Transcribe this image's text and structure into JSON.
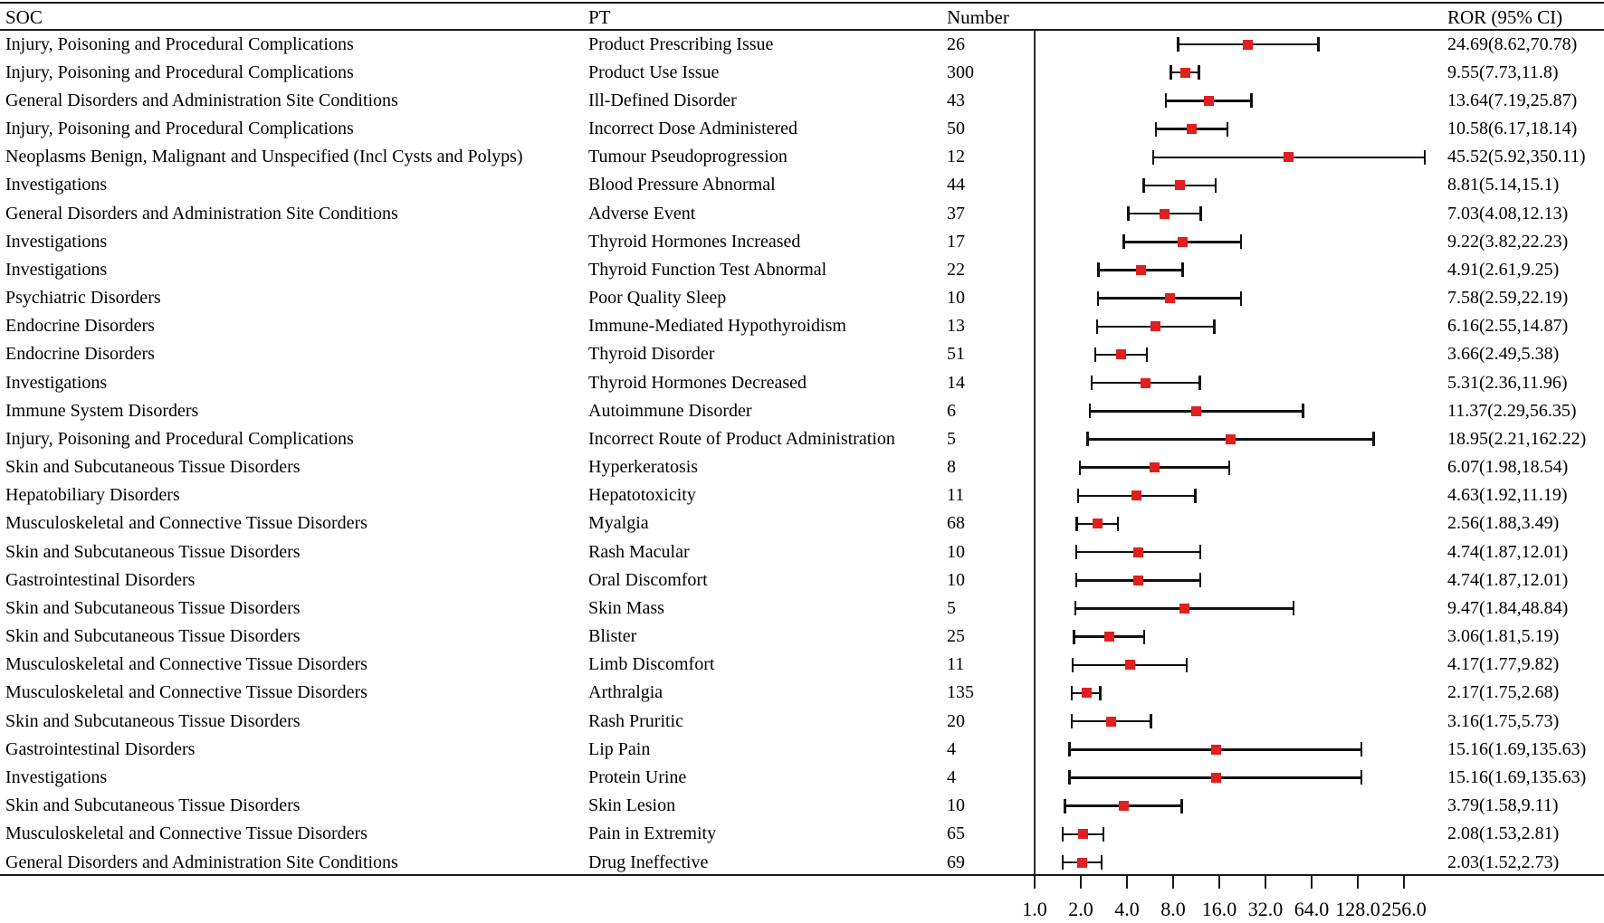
{
  "header": {
    "soc": "SOC",
    "pt": "PT",
    "number": "Number",
    "ror": "ROR (95% CI)"
  },
  "chart_data": {
    "type": "scatter",
    "subtype": "forest_plot",
    "title": "",
    "xlabel": "",
    "ylabel": "",
    "x_scale": "log2",
    "x_range": [
      1.0,
      256.0
    ],
    "x_axis_ticks": [
      "1.0",
      "2.0",
      "4.0",
      "8.0",
      "16.0",
      "32.0",
      "64.0",
      "128.0",
      "256.0"
    ],
    "reference_line_x": 1.0,
    "grid": false,
    "legend": "none",
    "marker_color": "#e01f1f",
    "line_color": "#111111",
    "rows": [
      {
        "soc": "Injury, Poisoning and Procedural Complications",
        "pt": "Product Prescribing Issue",
        "number": "26",
        "ror": 24.69,
        "ci_low": 8.62,
        "ci_high": 70.78,
        "ror_label": "24.69(8.62,70.78)"
      },
      {
        "soc": "Injury, Poisoning and Procedural Complications",
        "pt": "Product Use Issue",
        "number": "300",
        "ror": 9.55,
        "ci_low": 7.73,
        "ci_high": 11.8,
        "ror_label": "9.55(7.73,11.8)"
      },
      {
        "soc": "General Disorders and Administration Site Conditions",
        "pt": "Ill-Defined Disorder",
        "number": "43",
        "ror": 13.64,
        "ci_low": 7.19,
        "ci_high": 25.87,
        "ror_label": "13.64(7.19,25.87)"
      },
      {
        "soc": "Injury, Poisoning and Procedural Complications",
        "pt": "Incorrect Dose Administered",
        "number": "50",
        "ror": 10.58,
        "ci_low": 6.17,
        "ci_high": 18.14,
        "ror_label": "10.58(6.17,18.14)"
      },
      {
        "soc": "Neoplasms Benign, Malignant and Unspecified (Incl Cysts and Polyps)",
        "pt": "Tumour Pseudoprogression",
        "number": "12",
        "ror": 45.52,
        "ci_low": 5.92,
        "ci_high": 350.11,
        "ror_label": "45.52(5.92,350.11)"
      },
      {
        "soc": "Investigations",
        "pt": "Blood Pressure Abnormal",
        "number": "44",
        "ror": 8.81,
        "ci_low": 5.14,
        "ci_high": 15.1,
        "ror_label": "8.81(5.14,15.1)"
      },
      {
        "soc": "General Disorders and Administration Site Conditions",
        "pt": "Adverse Event",
        "number": "37",
        "ror": 7.03,
        "ci_low": 4.08,
        "ci_high": 12.13,
        "ror_label": "7.03(4.08,12.13)"
      },
      {
        "soc": "Investigations",
        "pt": "Thyroid Hormones Increased",
        "number": "17",
        "ror": 9.22,
        "ci_low": 3.82,
        "ci_high": 22.23,
        "ror_label": "9.22(3.82,22.23)"
      },
      {
        "soc": "Investigations",
        "pt": "Thyroid Function Test Abnormal",
        "number": "22",
        "ror": 4.91,
        "ci_low": 2.61,
        "ci_high": 9.25,
        "ror_label": "4.91(2.61,9.25)"
      },
      {
        "soc": "Psychiatric Disorders",
        "pt": "Poor Quality Sleep",
        "number": "10",
        "ror": 7.58,
        "ci_low": 2.59,
        "ci_high": 22.19,
        "ror_label": "7.58(2.59,22.19)"
      },
      {
        "soc": "Endocrine Disorders",
        "pt": "Immune-Mediated Hypothyroidism",
        "number": "13",
        "ror": 6.16,
        "ci_low": 2.55,
        "ci_high": 14.87,
        "ror_label": "6.16(2.55,14.87)"
      },
      {
        "soc": "Endocrine Disorders",
        "pt": "Thyroid Disorder",
        "number": "51",
        "ror": 3.66,
        "ci_low": 2.49,
        "ci_high": 5.38,
        "ror_label": "3.66(2.49,5.38)"
      },
      {
        "soc": "Investigations",
        "pt": "Thyroid Hormones Decreased",
        "number": "14",
        "ror": 5.31,
        "ci_low": 2.36,
        "ci_high": 11.96,
        "ror_label": "5.31(2.36,11.96)"
      },
      {
        "soc": "Immune System Disorders",
        "pt": "Autoimmune Disorder",
        "number": "6",
        "ror": 11.37,
        "ci_low": 2.29,
        "ci_high": 56.35,
        "ror_label": "11.37(2.29,56.35)"
      },
      {
        "soc": "Injury, Poisoning and Procedural Complications",
        "pt": "Incorrect Route of Product Administration",
        "number": "5",
        "ror": 18.95,
        "ci_low": 2.21,
        "ci_high": 162.22,
        "ror_label": "18.95(2.21,162.22)"
      },
      {
        "soc": "Skin and Subcutaneous Tissue Disorders",
        "pt": "Hyperkeratosis",
        "number": "8",
        "ror": 6.07,
        "ci_low": 1.98,
        "ci_high": 18.54,
        "ror_label": "6.07(1.98,18.54)"
      },
      {
        "soc": "Hepatobiliary Disorders",
        "pt": "Hepatotoxicity",
        "number": "11",
        "ror": 4.63,
        "ci_low": 1.92,
        "ci_high": 11.19,
        "ror_label": "4.63(1.92,11.19)"
      },
      {
        "soc": "Musculoskeletal and Connective Tissue Disorders",
        "pt": "Myalgia",
        "number": "68",
        "ror": 2.56,
        "ci_low": 1.88,
        "ci_high": 3.49,
        "ror_label": "2.56(1.88,3.49)"
      },
      {
        "soc": "Skin and Subcutaneous Tissue Disorders",
        "pt": "Rash Macular",
        "number": "10",
        "ror": 4.74,
        "ci_low": 1.87,
        "ci_high": 12.01,
        "ror_label": "4.74(1.87,12.01)"
      },
      {
        "soc": "Gastrointestinal Disorders",
        "pt": "Oral Discomfort",
        "number": "10",
        "ror": 4.74,
        "ci_low": 1.87,
        "ci_high": 12.01,
        "ror_label": "4.74(1.87,12.01)"
      },
      {
        "soc": "Skin and Subcutaneous Tissue Disorders",
        "pt": "Skin Mass",
        "number": "5",
        "ror": 9.47,
        "ci_low": 1.84,
        "ci_high": 48.84,
        "ror_label": "9.47(1.84,48.84)"
      },
      {
        "soc": "Skin and Subcutaneous Tissue Disorders",
        "pt": "Blister",
        "number": "25",
        "ror": 3.06,
        "ci_low": 1.81,
        "ci_high": 5.19,
        "ror_label": "3.06(1.81,5.19)"
      },
      {
        "soc": "Musculoskeletal and Connective Tissue Disorders",
        "pt": "Limb Discomfort",
        "number": "11",
        "ror": 4.17,
        "ci_low": 1.77,
        "ci_high": 9.82,
        "ror_label": "4.17(1.77,9.82)"
      },
      {
        "soc": "Musculoskeletal and Connective Tissue Disorders",
        "pt": "Arthralgia",
        "number": "135",
        "ror": 2.17,
        "ci_low": 1.75,
        "ci_high": 2.68,
        "ror_label": "2.17(1.75,2.68)"
      },
      {
        "soc": "Skin and Subcutaneous Tissue Disorders",
        "pt": "Rash Pruritic",
        "number": "20",
        "ror": 3.16,
        "ci_low": 1.75,
        "ci_high": 5.73,
        "ror_label": "3.16(1.75,5.73)"
      },
      {
        "soc": "Gastrointestinal Disorders",
        "pt": "Lip Pain",
        "number": "4",
        "ror": 15.16,
        "ci_low": 1.69,
        "ci_high": 135.63,
        "ror_label": "15.16(1.69,135.63)"
      },
      {
        "soc": "Investigations",
        "pt": "Protein Urine",
        "number": "4",
        "ror": 15.16,
        "ci_low": 1.69,
        "ci_high": 135.63,
        "ror_label": "15.16(1.69,135.63)"
      },
      {
        "soc": "Skin and Subcutaneous Tissue Disorders",
        "pt": "Skin Lesion",
        "number": "10",
        "ror": 3.79,
        "ci_low": 1.58,
        "ci_high": 9.11,
        "ror_label": "3.79(1.58,9.11)"
      },
      {
        "soc": "Musculoskeletal and Connective Tissue Disorders",
        "pt": "Pain in Extremity",
        "number": "65",
        "ror": 2.08,
        "ci_low": 1.53,
        "ci_high": 2.81,
        "ror_label": "2.08(1.53,2.81)"
      },
      {
        "soc": "General Disorders and Administration Site Conditions",
        "pt": "Drug Ineffective",
        "number": "69",
        "ror": 2.03,
        "ci_low": 1.52,
        "ci_high": 2.73,
        "ror_label": "2.03(1.52,2.73)"
      }
    ]
  }
}
